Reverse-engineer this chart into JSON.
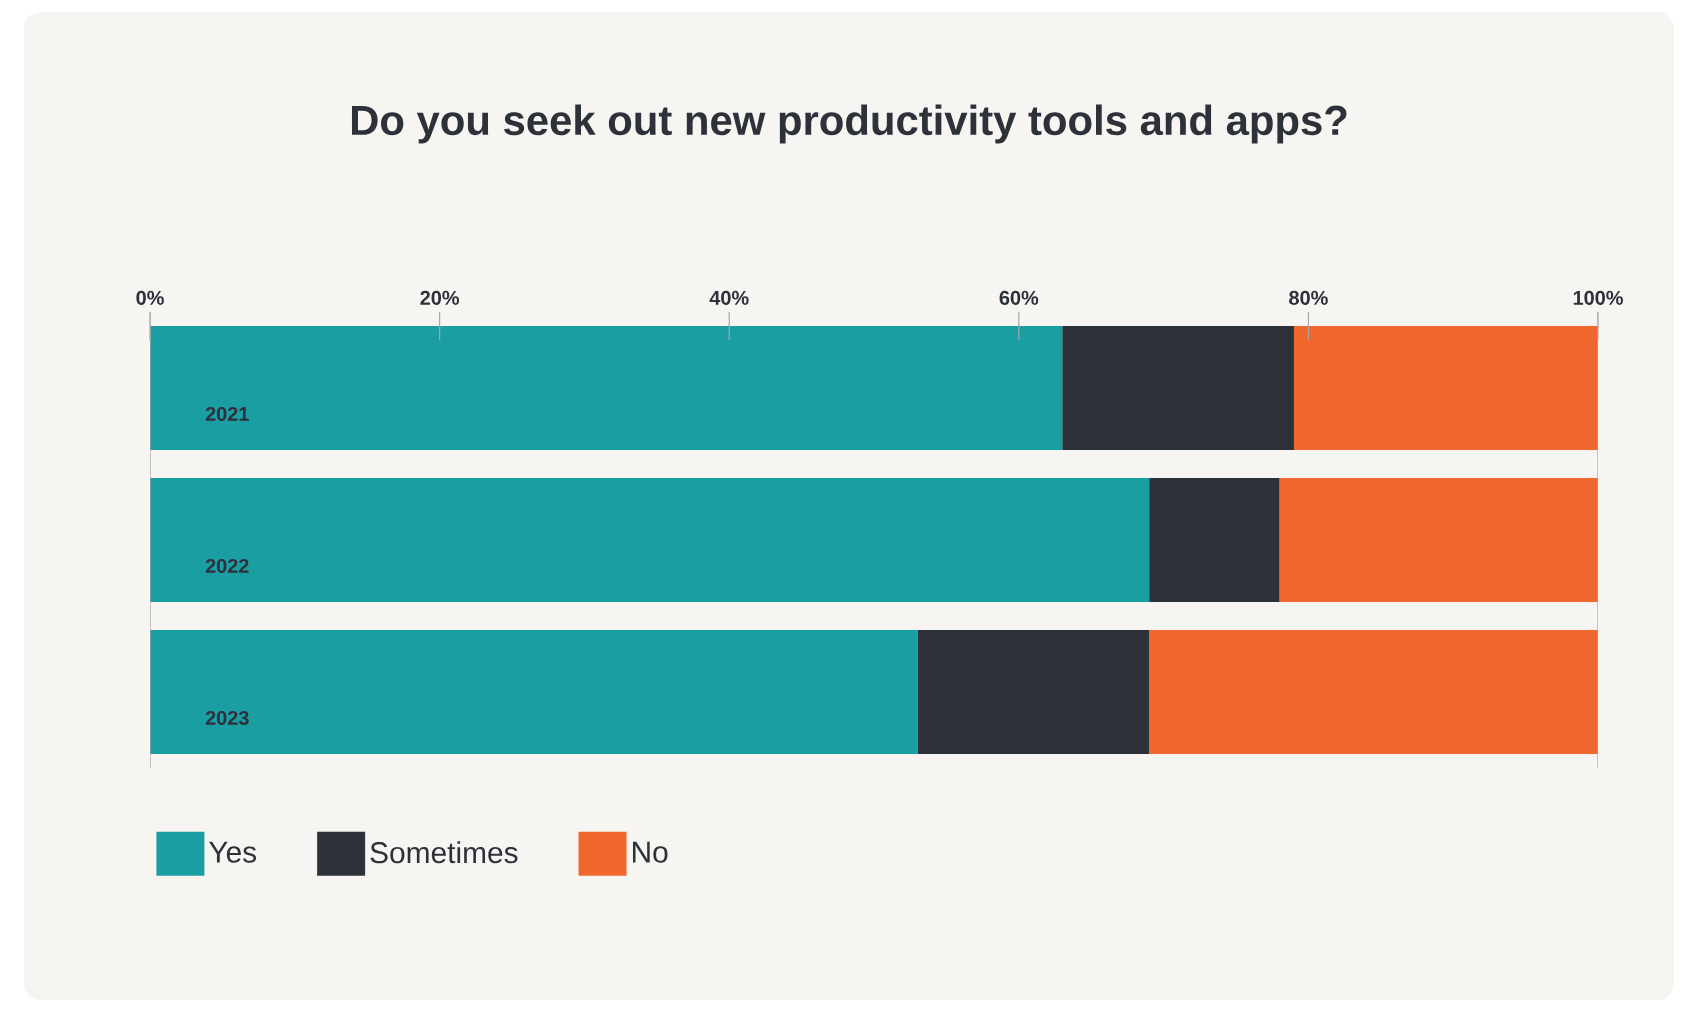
{
  "chart_data": {
    "type": "bar",
    "orientation": "horizontal",
    "stacked": true,
    "title": "Do you seek out new productivity tools and apps?",
    "categories": [
      "2021",
      "2022",
      "2023"
    ],
    "series": [
      {
        "name": "Yes",
        "color": "#1a9ea2",
        "values": [
          63,
          69,
          53
        ]
      },
      {
        "name": "Sometimes",
        "color": "#2c313a",
        "values": [
          16,
          9,
          16
        ]
      },
      {
        "name": "No",
        "color": "#f0672d",
        "values": [
          21,
          22,
          31
        ]
      }
    ],
    "xlim": [
      0,
      100
    ],
    "xticks": [
      {
        "value": 0,
        "label": "0%"
      },
      {
        "value": 20,
        "label": "20%"
      },
      {
        "value": 40,
        "label": "40%"
      },
      {
        "value": 60,
        "label": "60%"
      },
      {
        "value": 80,
        "label": "80%"
      },
      {
        "value": 100,
        "label": "100%"
      }
    ],
    "legend": "bottom left"
  }
}
